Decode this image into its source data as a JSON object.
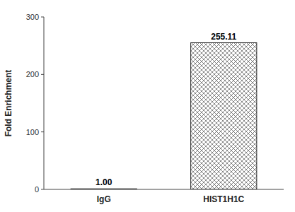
{
  "chart_data": {
    "type": "bar",
    "ylabel": "Fold Enrichment",
    "categories": [
      "IgG",
      "HIST1H1C"
    ],
    "values": [
      1.0,
      255.11
    ],
    "value_labels": [
      "1.00",
      "255.11"
    ],
    "data_labels": true,
    "color": "white",
    "ylim": [
      0,
      300
    ],
    "yticks": [
      0,
      100,
      200,
      300
    ],
    "grid": false
  }
}
